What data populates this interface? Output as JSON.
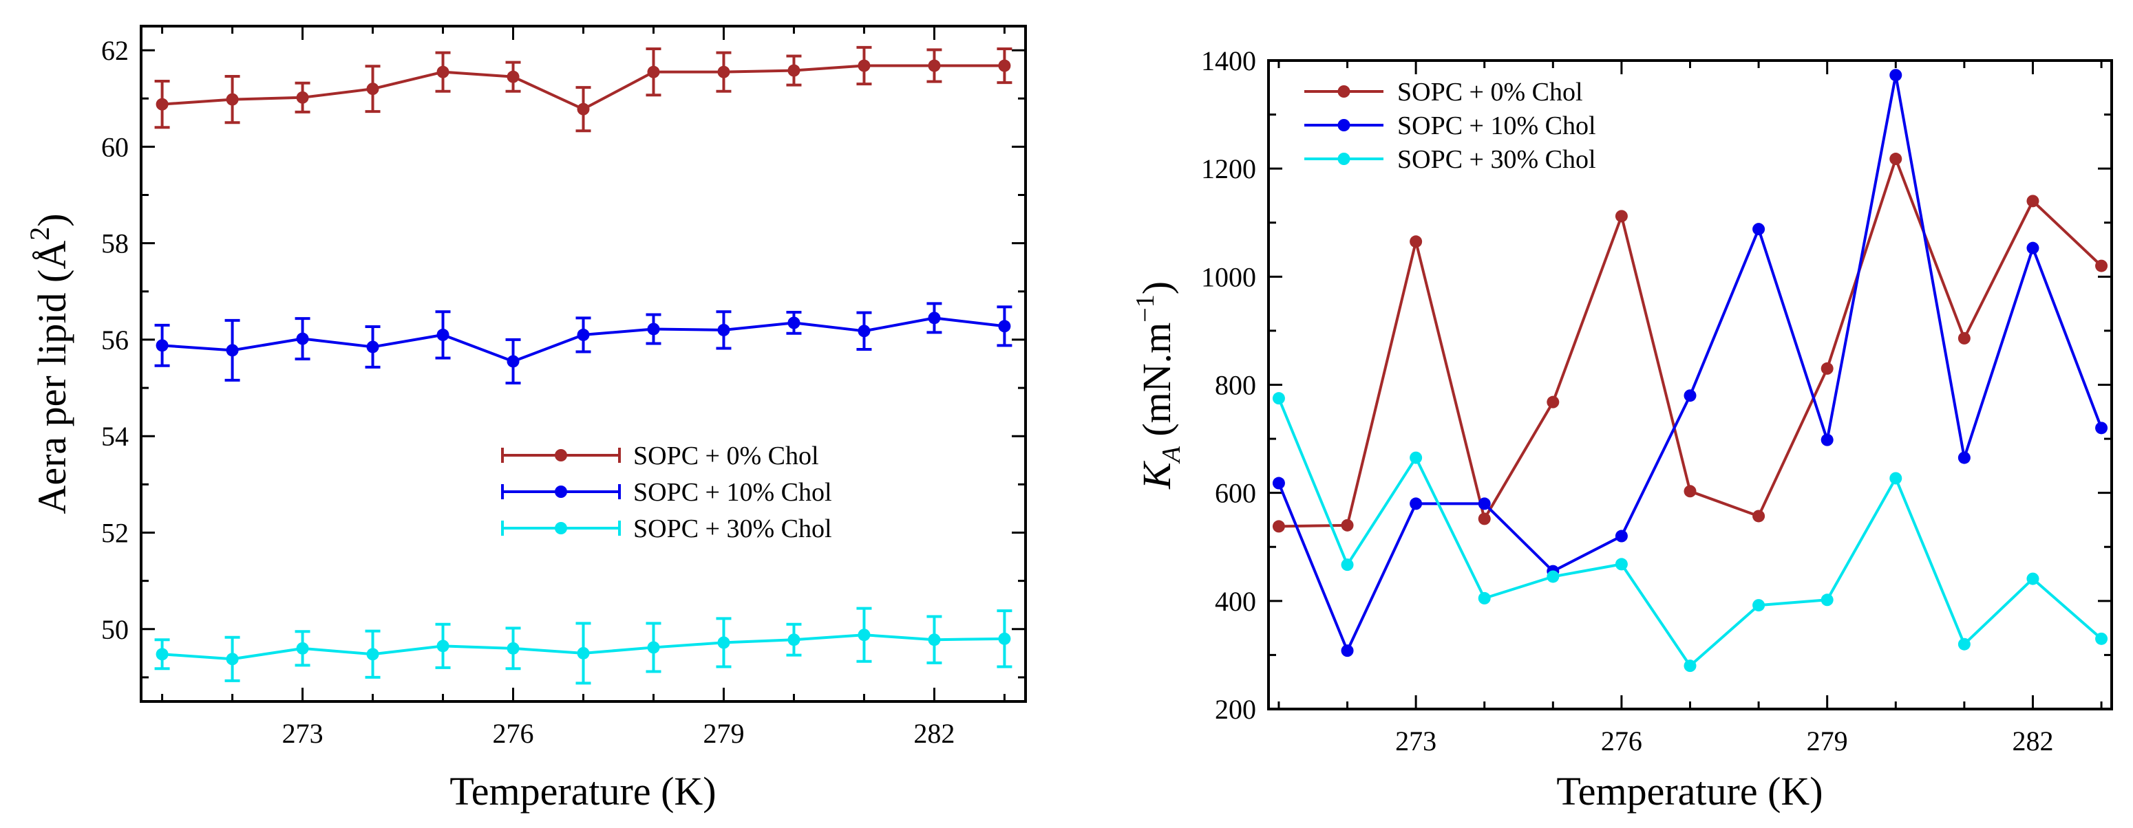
{
  "chart_data": [
    {
      "type": "line",
      "xlabel": "Temperature (K)",
      "ylabel": "Aera per lipid",
      "ylabel_unit": "Å",
      "ylabel_sup": "2",
      "x": [
        271,
        272,
        273,
        274,
        275,
        276,
        277,
        278,
        279,
        280,
        281,
        282,
        283
      ],
      "xlim": [
        270.7,
        283.3
      ],
      "ylim": [
        48.5,
        62.5
      ],
      "xticks": [
        273,
        276,
        279,
        282
      ],
      "yticks": [
        50,
        52,
        54,
        56,
        58,
        60,
        62
      ],
      "legend_position": "lower-right",
      "error_bars": true,
      "series": [
        {
          "name": "SOPC + 0% Chol",
          "color": "#a52a2a",
          "values": [
            60.88,
            60.98,
            61.02,
            61.2,
            61.55,
            61.45,
            60.78,
            61.55,
            61.55,
            61.58,
            61.68,
            61.68,
            61.68
          ],
          "errors": [
            0.48,
            0.48,
            0.3,
            0.47,
            0.4,
            0.3,
            0.45,
            0.48,
            0.4,
            0.3,
            0.38,
            0.33,
            0.35
          ]
        },
        {
          "name": "SOPC + 10% Chol",
          "color": "#0000ee",
          "values": [
            55.88,
            55.78,
            56.02,
            55.85,
            56.1,
            55.55,
            56.1,
            56.22,
            56.2,
            56.35,
            56.18,
            56.45,
            56.28
          ],
          "errors": [
            0.42,
            0.62,
            0.42,
            0.42,
            0.48,
            0.45,
            0.35,
            0.3,
            0.38,
            0.22,
            0.38,
            0.3,
            0.4
          ]
        },
        {
          "name": "SOPC + 30% Chol",
          "color": "#00e5ee",
          "values": [
            49.48,
            49.38,
            49.6,
            49.48,
            49.65,
            49.6,
            49.5,
            49.62,
            49.72,
            49.78,
            49.88,
            49.78,
            49.8
          ],
          "errors": [
            0.3,
            0.45,
            0.35,
            0.48,
            0.45,
            0.42,
            0.62,
            0.5,
            0.5,
            0.32,
            0.55,
            0.48,
            0.58
          ]
        }
      ]
    },
    {
      "type": "line",
      "xlabel": "Temperature (K)",
      "ylabel_symbol": "K",
      "ylabel_sub": "A",
      "ylabel_unit": "(mN.m",
      "ylabel_sup": "−1",
      "x": [
        271,
        272,
        273,
        274,
        275,
        276,
        277,
        278,
        279,
        280,
        281,
        282,
        283
      ],
      "xlim": [
        270.85,
        283.15
      ],
      "ylim": [
        200,
        1400
      ],
      "xticks": [
        273,
        276,
        279,
        282
      ],
      "yticks": [
        200,
        400,
        600,
        800,
        1000,
        1200,
        1400
      ],
      "legend_position": "top-left",
      "error_bars": false,
      "series": [
        {
          "name": "SOPC + 0% Chol",
          "color": "#a52a2a",
          "values": [
            538,
            540,
            1065,
            552,
            768,
            1112,
            603,
            557,
            830,
            1218,
            886,
            1140,
            1020
          ]
        },
        {
          "name": "SOPC + 10% Chol",
          "color": "#0000ee",
          "values": [
            618,
            308,
            580,
            580,
            455,
            520,
            780,
            1088,
            698,
            1373,
            665,
            1053,
            720
          ]
        },
        {
          "name": "SOPC + 30% Chol",
          "color": "#00e5ee",
          "values": [
            775,
            467,
            665,
            405,
            445,
            468,
            280,
            392,
            402,
            627,
            320,
            441,
            330
          ]
        }
      ]
    }
  ]
}
